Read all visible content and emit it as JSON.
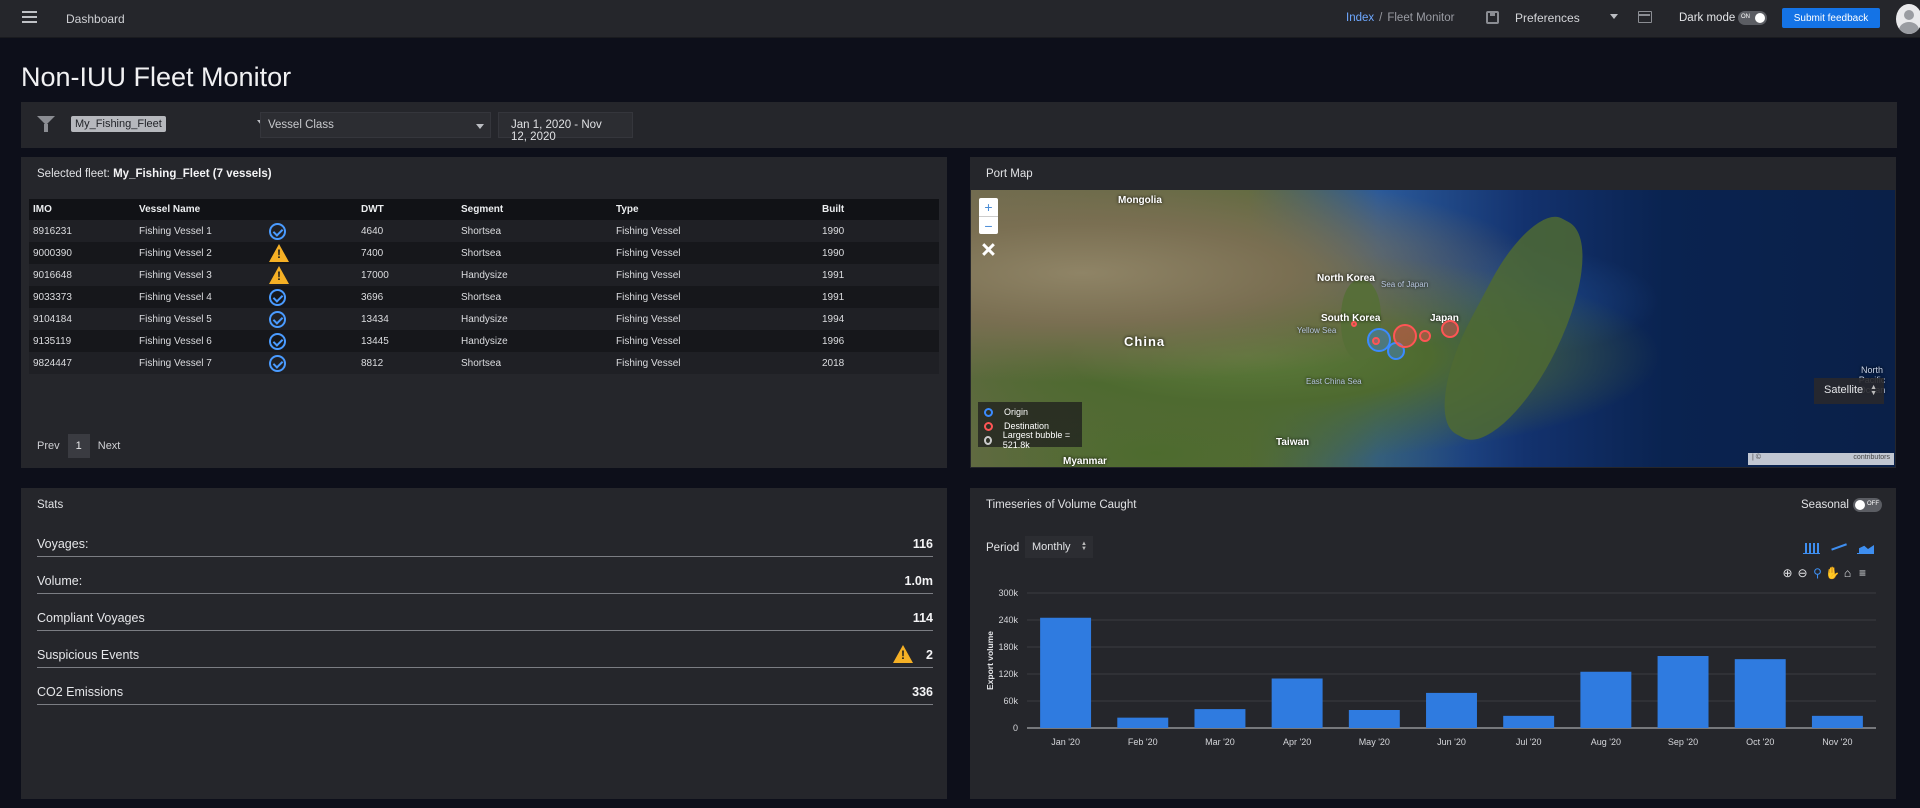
{
  "header": {
    "title": "Dashboard",
    "breadcrumb": {
      "index": "Index",
      "separator": "/",
      "current": "Fleet Monitor"
    },
    "preferences_label": "Preferences",
    "dark_mode_label": "Dark mode",
    "dark_mode_state": "ON",
    "feedback_label": "Submit feedback"
  },
  "page_title": "Non-IUU Fleet Monitor",
  "filters": {
    "fleet": "My_Fishing_Fleet",
    "vessel_class_placeholder": "Vessel Class",
    "date_range": "Jan 1, 2020 - Nov 12, 2020"
  },
  "fleet_panel": {
    "title_prefix": "Selected fleet:",
    "title_value": "My_Fishing_Fleet (7 vessels)",
    "columns": [
      "IMO",
      "Vessel Name",
      "",
      "DWT",
      "Segment",
      "Type",
      "Built"
    ],
    "rows": [
      {
        "imo": "8916231",
        "name": "Fishing Vessel 1",
        "status": "check-circle-icon",
        "dwt": "4640",
        "segment": "Shortsea",
        "type": "Fishing Vessel",
        "built": "1990"
      },
      {
        "imo": "9000390",
        "name": "Fishing Vessel 2",
        "status": "warning-icon",
        "dwt": "7400",
        "segment": "Shortsea",
        "type": "Fishing Vessel",
        "built": "1990"
      },
      {
        "imo": "9016648",
        "name": "Fishing Vessel 3",
        "status": "warning-icon",
        "dwt": "17000",
        "segment": "Handysize",
        "type": "Fishing Vessel",
        "built": "1991"
      },
      {
        "imo": "9033373",
        "name": "Fishing Vessel 4",
        "status": "check-circle-icon",
        "dwt": "3696",
        "segment": "Shortsea",
        "type": "Fishing Vessel",
        "built": "1991"
      },
      {
        "imo": "9104184",
        "name": "Fishing Vessel 5",
        "status": "check-circle-icon",
        "dwt": "13434",
        "segment": "Handysize",
        "type": "Fishing Vessel",
        "built": "1994"
      },
      {
        "imo": "9135119",
        "name": "Fishing Vessel 6",
        "status": "check-circle-icon",
        "dwt": "13445",
        "segment": "Handysize",
        "type": "Fishing Vessel",
        "built": "1996"
      },
      {
        "imo": "9824447",
        "name": "Fishing Vessel 7",
        "status": "check-circle-icon",
        "dwt": "8812",
        "segment": "Shortsea",
        "type": "Fishing Vessel",
        "built": "2018"
      }
    ],
    "pager": {
      "prev": "Prev",
      "page": "1",
      "next": "Next"
    }
  },
  "map_panel": {
    "title": "Port Map",
    "labels": {
      "mongolia": "Mongolia",
      "north_korea": "North Korea",
      "sea_of_japan": "Sea of Japan",
      "china": "China",
      "yellow_sea": "Yellow Sea",
      "south_korea": "South Korea",
      "japan": "Japan",
      "east_china_sea": "East China Sea",
      "taiwan": "Taiwan",
      "myanmar": "Myanmar",
      "north_pacific_ocean": "North Pacific Ocean"
    },
    "legend": {
      "origin": "Origin",
      "destination": "Destination",
      "largest": "Largest bubble = 521.8k"
    },
    "layer": "Satellite",
    "attribution_left": "| ©",
    "attribution_right": "contributors",
    "zoom_in": "+",
    "zoom_out": "−"
  },
  "stats_panel": {
    "title": "Stats",
    "items": [
      {
        "label": "Voyages:",
        "value": "116"
      },
      {
        "label": "Volume:",
        "value": "1.0m"
      },
      {
        "label": "Compliant Voyages",
        "value": "114"
      },
      {
        "label": "Suspicious Events",
        "value": "2",
        "icon": "warning-icon"
      },
      {
        "label": "CO2 Emissions",
        "value": "336"
      }
    ]
  },
  "timeseries_panel": {
    "title": "Timeseries of Volume Caught",
    "seasonal_label": "Seasonal",
    "seasonal_state": "OFF",
    "period_label": "Period",
    "period_value": "Monthly",
    "chart_type_icons": [
      "bar-chart-icon",
      "line-chart-icon",
      "area-chart-icon"
    ],
    "toolbar_icons": [
      "zoom-in-icon",
      "zoom-out-icon",
      "zoom-select-icon",
      "pan-icon",
      "home-icon",
      "menu-icon"
    ]
  },
  "chart_data": {
    "type": "bar",
    "categories": [
      "Jan '20",
      "Feb '20",
      "Mar '20",
      "Apr '20",
      "May '20",
      "Jun '20",
      "Jul '20",
      "Aug '20",
      "Sep '20",
      "Oct '20",
      "Nov '20"
    ],
    "values": [
      245000,
      23000,
      42000,
      110000,
      40000,
      78000,
      27000,
      125000,
      160000,
      153000,
      27000
    ],
    "ylabel": "Export volume",
    "ylim": [
      0,
      300000
    ],
    "yticks": [
      0,
      60000,
      120000,
      180000,
      240000,
      300000
    ],
    "ytick_labels": [
      "0",
      "60k",
      "120k",
      "180k",
      "240k",
      "300k"
    ],
    "grid": true,
    "color": "#2f7be0"
  }
}
